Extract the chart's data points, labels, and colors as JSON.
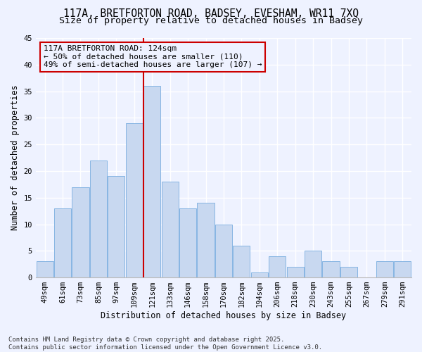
{
  "title": "117A, BRETFORTON ROAD, BADSEY, EVESHAM, WR11 7XQ",
  "subtitle": "Size of property relative to detached houses in Badsey",
  "xlabel": "Distribution of detached houses by size in Badsey",
  "ylabel": "Number of detached properties",
  "bar_color": "#c8d8f0",
  "bar_edge_color": "#7aaee0",
  "categories": [
    "49sqm",
    "61sqm",
    "73sqm",
    "85sqm",
    "97sqm",
    "109sqm",
    "121sqm",
    "133sqm",
    "146sqm",
    "158sqm",
    "170sqm",
    "182sqm",
    "194sqm",
    "206sqm",
    "218sqm",
    "230sqm",
    "243sqm",
    "255sqm",
    "267sqm",
    "279sqm",
    "291sqm"
  ],
  "values": [
    3,
    13,
    17,
    22,
    19,
    29,
    36,
    18,
    13,
    14,
    10,
    6,
    1,
    4,
    2,
    5,
    3,
    2,
    0,
    3,
    3
  ],
  "vline_color": "#cc0000",
  "vline_index": 6,
  "annotation_line1": "117A BRETFORTON ROAD: 124sqm",
  "annotation_line2": "← 50% of detached houses are smaller (110)",
  "annotation_line3": "49% of semi-detached houses are larger (107) →",
  "annotation_box_color": "#cc0000",
  "ylim": [
    0,
    45
  ],
  "yticks": [
    0,
    5,
    10,
    15,
    20,
    25,
    30,
    35,
    40,
    45
  ],
  "footnote": "Contains HM Land Registry data © Crown copyright and database right 2025.\nContains public sector information licensed under the Open Government Licence v3.0.",
  "background_color": "#eef2ff",
  "grid_color": "#ffffff",
  "title_fontsize": 10.5,
  "subtitle_fontsize": 9.5,
  "label_fontsize": 8.5,
  "tick_fontsize": 7.5,
  "annotation_fontsize": 8,
  "footnote_fontsize": 6.5
}
